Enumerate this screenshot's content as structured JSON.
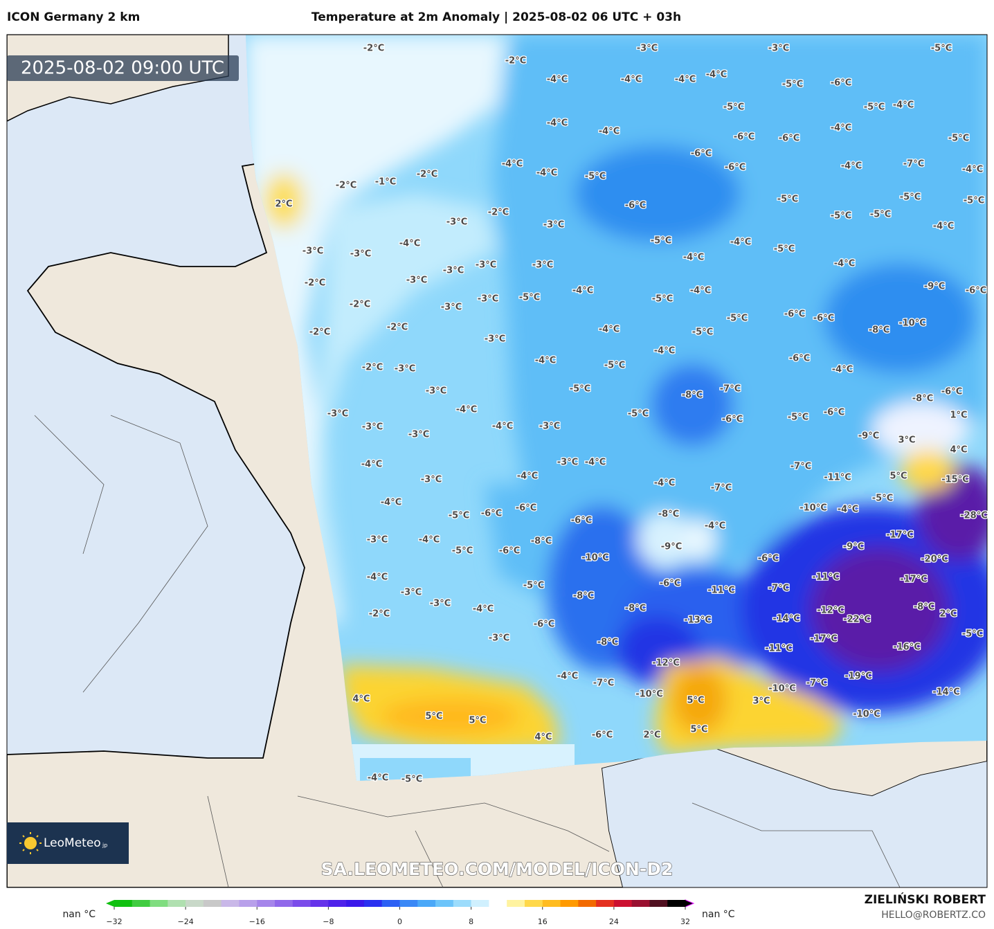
{
  "header": {
    "model": "ICON Germany 2 km",
    "title": "Temperature at 2m Anomaly | 2025-08-02 06 UTC + 03h"
  },
  "valid_time": "2025-08-02 09:00 UTC",
  "watermark": "SA.LEOMETEO.COM/MODEL/ICON-D2",
  "logo": {
    "name": "LeoMeteo",
    "suffix": "jp"
  },
  "author": {
    "name": "ZIELIŃSKI ROBERT",
    "email": "HELLO@ROBERTZ.CO"
  },
  "colorbar": {
    "left_label": "nan °C",
    "right_label": "nan °C",
    "range": [
      -32,
      32
    ],
    "ticks": [
      {
        "value": -32,
        "label": "−32"
      },
      {
        "value": -24,
        "label": "−24"
      },
      {
        "value": -16,
        "label": "−16"
      },
      {
        "value": -8,
        "label": "−8"
      },
      0,
      8,
      16,
      24,
      32
    ],
    "colors": [
      "#10c010",
      "#40cc40",
      "#80dd80",
      "#b0e0b0",
      "#c8d8c8",
      "#c8c8c8",
      "#c9b8e8",
      "#b8a0ea",
      "#a585ea",
      "#9068ea",
      "#7b4cea",
      "#6533ea",
      "#4e22ea",
      "#3a18ea",
      "#2a30f0",
      "#2c60f4",
      "#3a88f6",
      "#4aa8f8",
      "#6cc4fa",
      "#9cdcfc",
      "#d0f0fe",
      "#ffffff",
      "#fff3a0",
      "#ffd84a",
      "#ffbc20",
      "#ff9a00",
      "#f26a00",
      "#e43020",
      "#cc1030",
      "#991030",
      "#501020",
      "#000000"
    ]
  },
  "map_labels": [
    "-2°C",
    "-2°C",
    "-3°C",
    "-3°C",
    "-5°C",
    "-4°C",
    "-4°C",
    "-4°C",
    "-4°C",
    "-5°C",
    "-6°C",
    "-5°C",
    "-5°C",
    "-4°C",
    "-4°C",
    "-4°C",
    "-4°C",
    "-6°C",
    "-6°C",
    "-5°C",
    "-4°C",
    "-4°C",
    "-5°C",
    "-6°C",
    "-6°C",
    "-4°C",
    "-7°C",
    "-4°C",
    "-2°C",
    "-1°C",
    "-2°C",
    "2°C",
    "-6°C",
    "-5°C",
    "-5°C",
    "-5°C",
    "-2°C",
    "-3°C",
    "-3°C",
    "-5°C",
    "-5°C",
    "-4°C",
    "-4°C",
    "-5°C",
    "-4°C",
    "-5°C",
    "-3°C",
    "-3°C",
    "-3°C",
    "-3°C",
    "-3°C",
    "-4°C",
    "-4°C",
    "-2°C",
    "-3°C",
    "-9°C",
    "-6°C",
    "-2°C",
    "-3°C",
    "-3°C",
    "-5°C",
    "-4°C",
    "-5°C",
    "-4°C",
    "-2°C",
    "-2°C",
    "-4°C",
    "-5°C",
    "-6°C",
    "-6°C",
    "-8°C",
    "-10°C",
    "-5°C",
    "-3°C",
    "-4°C",
    "-6°C",
    "-4°C",
    "-2°C",
    "-3°C",
    "-4°C",
    "-5°C",
    "-3°C",
    "-5°C",
    "-8°C",
    "-7°C",
    "-8°C",
    "-6°C",
    "-3°C",
    "-4°C",
    "-5°C",
    "-6°C",
    "-5°C",
    "-6°C",
    "1°C",
    "-3°C",
    "-4°C",
    "-3°C",
    "-3°C",
    "-9°C",
    "3°C",
    "-4°C",
    "-3°C",
    "-4°C",
    "-7°C",
    "4°C",
    "-3°C",
    "-4°C",
    "-4°C",
    "-7°C",
    "-11°C",
    "5°C",
    "-15°C",
    "-4°C",
    "-5°C",
    "-6°C",
    "-6°C",
    "-8°C",
    "-10°C",
    "-4°C",
    "-5°C",
    "-28°C",
    "-3°C",
    "-4°C",
    "-6°C",
    "-4°C",
    "-17°C",
    "-5°C",
    "-6°C",
    "-8°C",
    "-9°C",
    "-9°C",
    "-20°C",
    "-4°C",
    "-10°C",
    "-6°C",
    "-11°C",
    "-17°C",
    "-3°C",
    "-5°C",
    "-6°C",
    "-11°C",
    "-7°C",
    "-3°C",
    "-4°C",
    "-8°C",
    "-8°C",
    "-12°C",
    "-8°C",
    "2°C",
    "-2°C",
    "-6°C",
    "-13°C",
    "-14°C",
    "-22°C",
    "-3°C",
    "-8°C",
    "-17°C",
    "-5°C",
    "-11°C",
    "-16°C",
    "-12°C",
    "-4°C",
    "-19°C",
    "4°C",
    "-7°C",
    "-10°C",
    "-7°C",
    "-14°C",
    "-10°C",
    "5°C",
    "3°C",
    "5°C",
    "5°C",
    "-10°C",
    "5°C",
    "2°C",
    "4°C",
    "-6°C",
    "-4°C",
    "-5°C"
  ]
}
